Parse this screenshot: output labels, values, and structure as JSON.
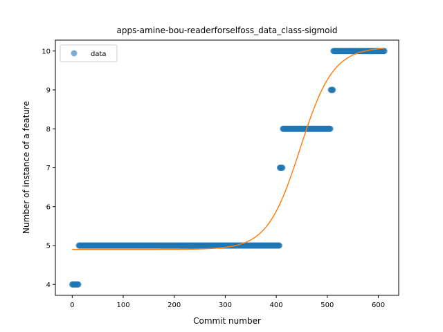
{
  "chart_data": {
    "type": "scatter",
    "title": "apps-amine-bou-readerforselfoss_data_class-sigmoid",
    "xlabel": "Commit number",
    "ylabel": "Number of instance of a feature",
    "xlim": [
      -33,
      640
    ],
    "ylim": [
      3.72,
      10.28
    ],
    "xticks": [
      0,
      100,
      200,
      300,
      400,
      500,
      600
    ],
    "yticks": [
      4,
      5,
      6,
      7,
      8,
      9,
      10
    ],
    "grid": false,
    "legend": {
      "position": "top-left",
      "entries": [
        "data"
      ]
    },
    "colors": {
      "data": "#1f77b4",
      "fit": "#ff7f0e"
    },
    "series": [
      {
        "name": "data",
        "kind": "scatter",
        "segments": [
          {
            "x_start": 0,
            "x_end": 12,
            "y": 4
          },
          {
            "x_start": 13,
            "x_end": 406,
            "y": 5
          },
          {
            "x_start": 407,
            "x_end": 412,
            "y": 7
          },
          {
            "x_start": 413,
            "x_end": 506,
            "y": 8
          },
          {
            "x_start": 507,
            "x_end": 511,
            "y": 9
          },
          {
            "x_start": 512,
            "x_end": 612,
            "y": 10
          }
        ]
      },
      {
        "kind": "line",
        "curve": "sigmoid",
        "x_range": [
          0,
          612
        ],
        "lower": 4.9,
        "upper": 10.1,
        "midpoint": 447,
        "rate": 0.031
      }
    ]
  }
}
